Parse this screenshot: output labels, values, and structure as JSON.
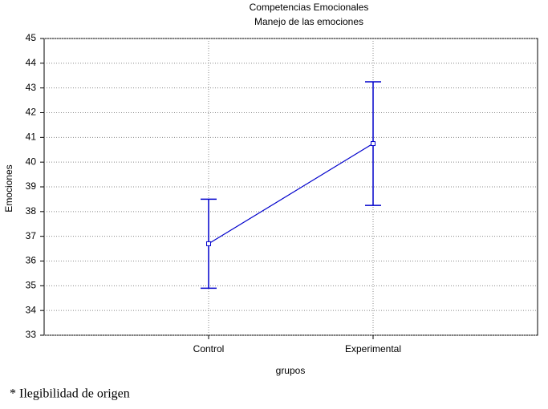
{
  "chart_data": {
    "type": "line",
    "title": "Competencias Emocionales",
    "subtitle": "Manejo de las emociones",
    "x_label": "grupos",
    "y_label": "Emociones",
    "categories": [
      "Control",
      "Experimental"
    ],
    "values": [
      36.7,
      40.75
    ],
    "errors": [
      1.8,
      2.5
    ],
    "color": "#0000cc",
    "ylim": [
      33,
      45
    ],
    "yticks": [
      33,
      34,
      35,
      36,
      37,
      38,
      39,
      40,
      41,
      42,
      43,
      44,
      45
    ],
    "grid": true
  },
  "footnote": "* Ilegibilidad de origen"
}
